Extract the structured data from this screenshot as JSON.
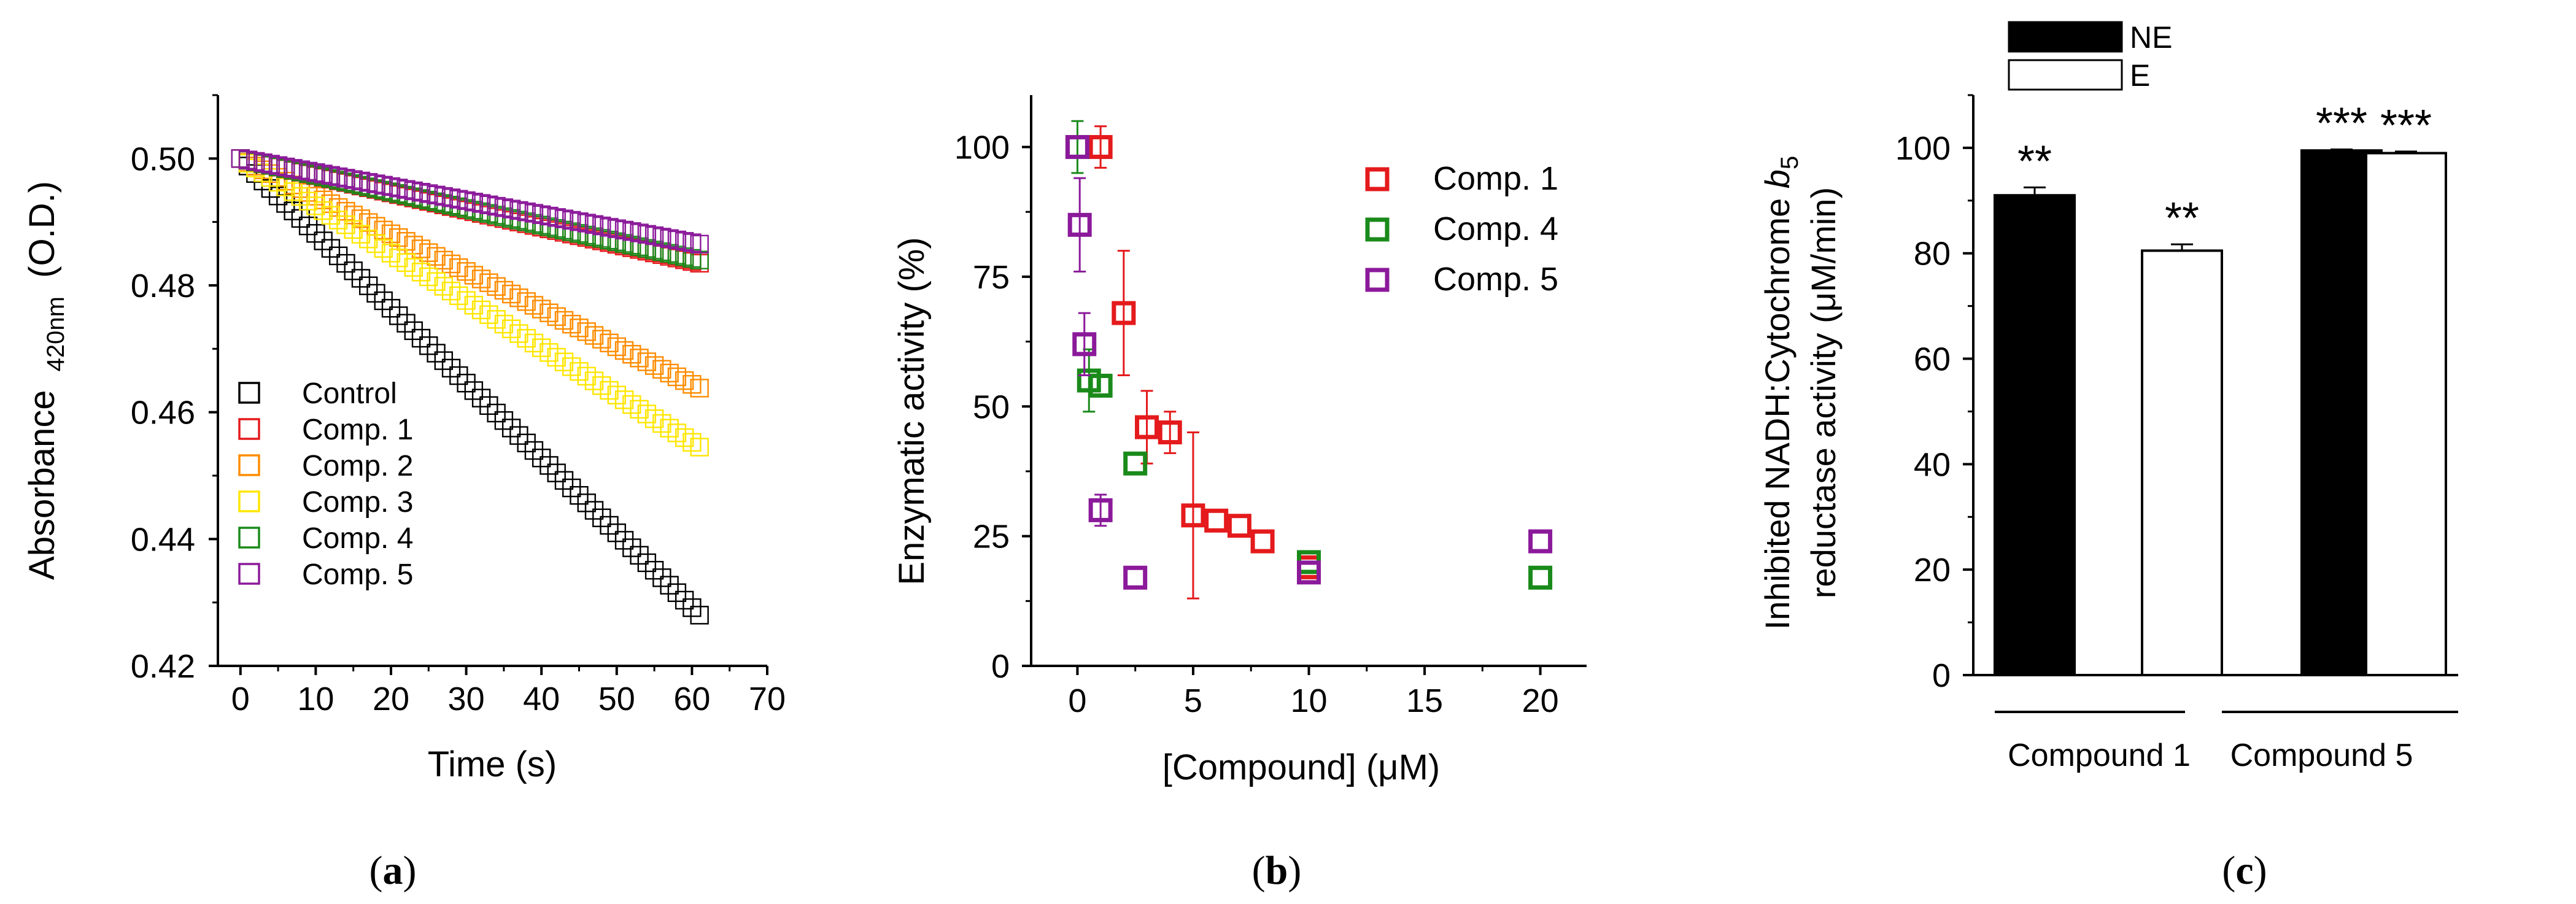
{
  "chart_data": [
    {
      "type": "scatter",
      "panel_label": "a",
      "xlabel": "Time (s)",
      "ylabel_main": "Absorbance",
      "ylabel_sub": "420nm",
      "ylabel_unit": "(O.D.)",
      "xlim": [
        -3,
        70
      ],
      "ylim": [
        0.42,
        0.51
      ],
      "xticks": [
        0,
        10,
        20,
        30,
        40,
        50,
        60,
        70
      ],
      "xtick_labels": [
        "0",
        "10",
        "20",
        "30",
        "40",
        "50",
        "60",
        "70"
      ],
      "yticks": [
        0.42,
        0.44,
        0.46,
        0.48,
        0.5
      ],
      "ytick_labels": [
        "0.42",
        "0.44",
        "0.46",
        "0.48",
        "0.50"
      ],
      "legend_position": "lower-left",
      "series": [
        {
          "name": "Control",
          "color": "#000000",
          "start": 0.5,
          "end": 0.428
        },
        {
          "name": "Comp. 1",
          "color": "#e41a1c",
          "start": 0.5,
          "end": 0.4835
        },
        {
          "name": "Comp. 2",
          "color": "#ff8c00",
          "start": 0.5,
          "end": 0.4638
        },
        {
          "name": "Comp. 3",
          "color": "#ffe600",
          "start": 0.5,
          "end": 0.4545
        },
        {
          "name": "Comp. 4",
          "color": "#1a8a1a",
          "start": 0.5,
          "end": 0.484
        },
        {
          "name": "Comp. 5",
          "color": "#8b1a9a",
          "start": 0.5,
          "end": 0.4865
        }
      ]
    },
    {
      "type": "scatter",
      "panel_label": "b",
      "xlabel": "[Compound] (μM)",
      "ylabel": "Enzymatic activity (%)",
      "xlim": [
        -2,
        22
      ],
      "ylim": [
        0,
        110
      ],
      "xticks": [
        0,
        5,
        10,
        15,
        20
      ],
      "xtick_labels": [
        "0",
        "5",
        "10",
        "15",
        "20"
      ],
      "yticks": [
        0,
        25,
        50,
        75,
        100
      ],
      "ytick_labels": [
        "0",
        "25",
        "50",
        "75",
        "100"
      ],
      "legend_position": "top-right",
      "series": [
        {
          "name": "Comp. 1",
          "color": "#e41a1c",
          "points": [
            [
              1,
              100,
              4
            ],
            [
              2,
              68,
              12
            ],
            [
              3,
              46,
              7
            ],
            [
              4,
              45,
              4
            ],
            [
              5,
              29,
              16
            ],
            [
              6,
              28,
              1
            ],
            [
              7,
              27,
              1
            ],
            [
              8,
              24,
              1
            ],
            [
              10,
              19,
              1
            ]
          ]
        },
        {
          "name": "Comp. 4",
          "color": "#1a8a1a",
          "points": [
            [
              0,
              100,
              5
            ],
            [
              0.5,
              55,
              6
            ],
            [
              1,
              54,
              1
            ],
            [
              2.5,
              39,
              1
            ],
            [
              10,
              20,
              1
            ],
            [
              20,
              17,
              1
            ]
          ]
        },
        {
          "name": "Comp. 5",
          "color": "#8b1a9a",
          "points": [
            [
              0,
              100,
              1
            ],
            [
              0.1,
              85,
              9
            ],
            [
              0.3,
              62,
              6
            ],
            [
              1,
              30,
              3
            ],
            [
              2.5,
              17,
              1
            ],
            [
              10,
              18,
              1
            ],
            [
              20,
              24,
              1
            ]
          ]
        }
      ]
    },
    {
      "type": "bar",
      "panel_label": "c",
      "ylabel_line1_pre": "Inhibited NADH:Cytochrome ",
      "ylabel_line1_italic": "b",
      "ylabel_line1_sub": "5",
      "ylabel_line2": "reductase activity  (μM/min)",
      "ylim": [
        0,
        110
      ],
      "yticks": [
        0,
        20,
        40,
        60,
        80,
        100
      ],
      "ytick_labels": [
        "0",
        "20",
        "40",
        "60",
        "80",
        "100"
      ],
      "groups": [
        "Compound 1",
        "Compound 5"
      ],
      "legend_position": "top-left",
      "series": [
        {
          "name": "NE",
          "fill": "#000000",
          "values": [
            91,
            99.5
          ],
          "errors": [
            1.5,
            0.2
          ],
          "significance": [
            "**",
            "***"
          ]
        },
        {
          "name": "E",
          "fill": "#ffffff",
          "values": [
            80.5,
            99
          ],
          "errors": [
            1.2,
            0.3
          ],
          "significance": [
            "**",
            "***"
          ]
        }
      ]
    }
  ]
}
